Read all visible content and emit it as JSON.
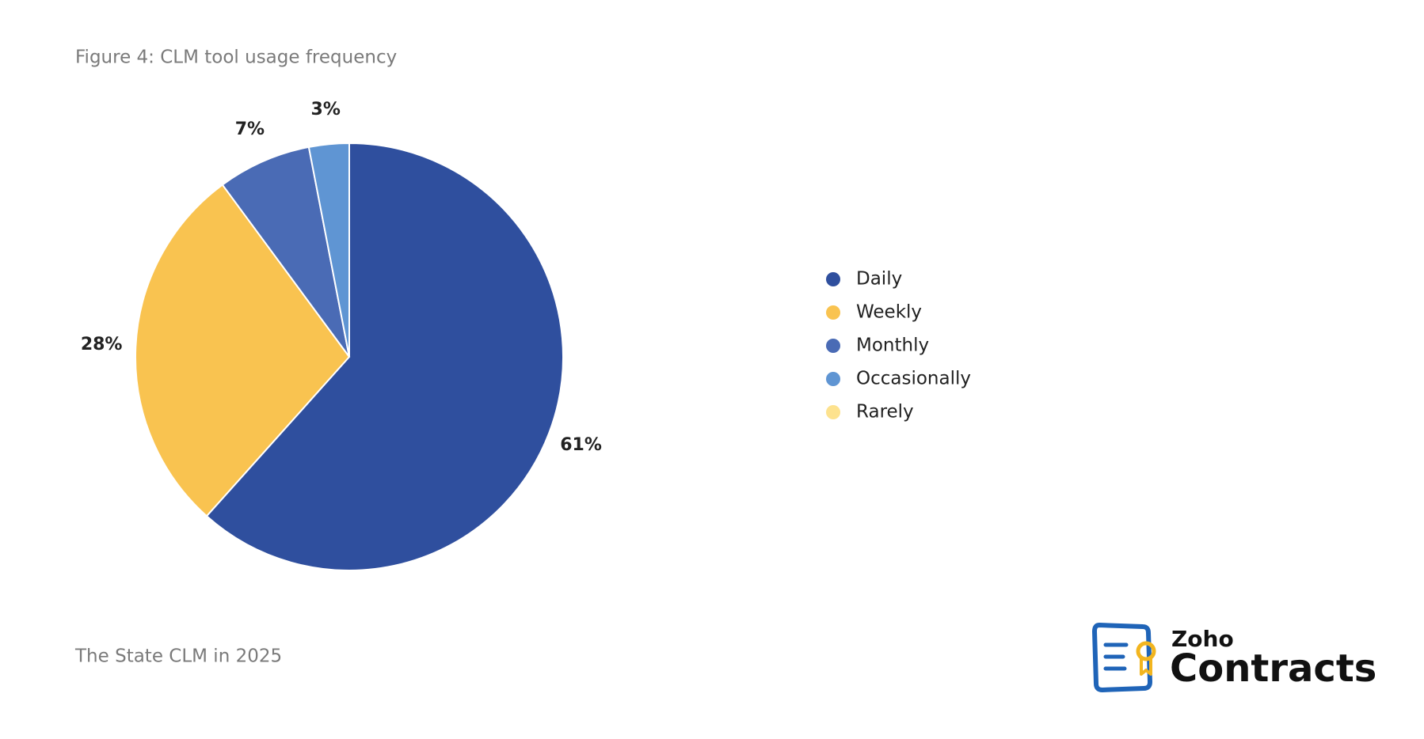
{
  "chart_data": {
    "type": "pie",
    "title": "Figure 4: CLM tool usage frequency",
    "categories": [
      "Daily",
      "Weekly",
      "Monthly",
      "Occasionally",
      "Rarely"
    ],
    "values": [
      61,
      28,
      7,
      3,
      0
    ],
    "value_labels": [
      "61%",
      "28%",
      "7%",
      "3%",
      null
    ],
    "colors": [
      "#2f4f9e",
      "#f9c350",
      "#4a6bb5",
      "#5f95d3",
      "#fde28e"
    ],
    "legend": "right"
  },
  "footer": "The State CLM in 2025",
  "logo": {
    "top": "Zoho",
    "bottom": "Contracts"
  }
}
